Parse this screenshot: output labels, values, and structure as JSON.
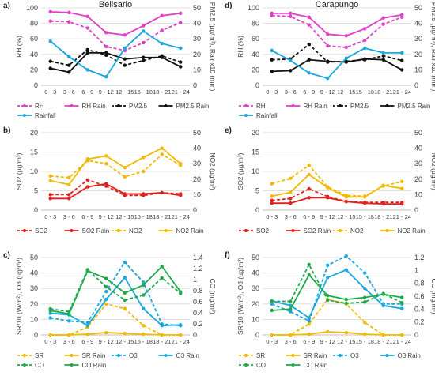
{
  "colors": {
    "pink": "#e040c8",
    "black": "#111111",
    "cyan": "#1aa7dc",
    "orange": "#f2b900",
    "red": "#e0201c",
    "green": "#1ea84a",
    "grid": "#d9d9d9",
    "axis": "#bfbfbf",
    "text": "#404040"
  },
  "chart_data": [
    {
      "id": "a",
      "type": "line",
      "panel_label": "a)",
      "title": "Belisario",
      "categories": [
        "0 - 3",
        "3 - 6",
        "6 - 9",
        "9 - 12",
        "12 - 15",
        "15 - 18",
        "18 - 21",
        "21 - 24"
      ],
      "ylabel": "RH (%)",
      "ylabel_right": "PM2.5 (µg/m³), Rainx10 (mm)",
      "ylim": [
        0,
        100
      ],
      "yticks": [
        0,
        20,
        40,
        60,
        80,
        100
      ],
      "ylim_right": [
        0,
        50
      ],
      "yticks_right": [
        0,
        10,
        20,
        30,
        40,
        50
      ],
      "grid": true,
      "legend_position": "bottom",
      "series": [
        {
          "name": "RH",
          "color": "pink",
          "dash": true,
          "axis": "left",
          "values": [
            83,
            82,
            74,
            50,
            45,
            55,
            71,
            81
          ]
        },
        {
          "name": "RH Rain",
          "color": "pink",
          "dash": false,
          "axis": "left",
          "values": [
            95,
            94,
            89,
            68,
            65,
            77,
            90,
            93
          ]
        },
        {
          "name": "PM2.5",
          "color": "black",
          "dash": true,
          "axis": "right",
          "values": [
            15.5,
            13,
            23,
            19.5,
            13,
            16,
            19,
            15
          ]
        },
        {
          "name": "PM2.5 Rain",
          "color": "black",
          "dash": false,
          "axis": "right",
          "values": [
            11,
            8.5,
            21,
            21,
            17,
            18,
            18,
            12
          ]
        },
        {
          "name": "Rainfall",
          "color": "cyan",
          "dash": false,
          "axis": "right",
          "values": [
            28.5,
            18.5,
            10,
            5.5,
            24,
            35,
            27,
            24
          ]
        }
      ]
    },
    {
      "id": "d",
      "type": "line",
      "panel_label": "d)",
      "title": "Carapungo",
      "categories": [
        "0 - 3",
        "3 - 6",
        "6 - 9",
        "9 - 12",
        "12 - 15",
        "15 - 18",
        "18 - 21",
        "21 - 24"
      ],
      "ylabel": "RH (%)",
      "ylabel_right": "PM2.5 (µg/m³), Rainx10 (mm)",
      "ylim": [
        0,
        100
      ],
      "yticks": [
        0,
        20,
        40,
        60,
        80,
        100
      ],
      "ylim_right": [
        0,
        50
      ],
      "yticks_right": [
        0,
        10,
        20,
        30,
        40,
        50
      ],
      "grid": true,
      "legend_position": "bottom",
      "series": [
        {
          "name": "RH",
          "color": "pink",
          "dash": true,
          "axis": "left",
          "values": [
            90,
            89,
            78,
            51,
            49,
            58,
            79,
            88
          ]
        },
        {
          "name": "RH Rain",
          "color": "pink",
          "dash": false,
          "axis": "left",
          "values": [
            93,
            93,
            88,
            66,
            64,
            73,
            87,
            91
          ]
        },
        {
          "name": "PM2.5",
          "color": "black",
          "dash": true,
          "axis": "right",
          "values": [
            16.5,
            17,
            26.5,
            15,
            15.5,
            16.5,
            19,
            16
          ]
        },
        {
          "name": "PM2.5 Rain",
          "color": "black",
          "dash": false,
          "axis": "right",
          "values": [
            9,
            9.5,
            16.5,
            15.5,
            15,
            17,
            16.5,
            10
          ]
        },
        {
          "name": "Rainfall",
          "color": "cyan",
          "dash": false,
          "axis": "right",
          "values": [
            22.5,
            16,
            8,
            4.5,
            17.5,
            24,
            21,
            21
          ]
        }
      ]
    },
    {
      "id": "b",
      "type": "line",
      "panel_label": "b)",
      "categories": [
        "0 - 3",
        "3 - 6",
        "6 - 9",
        "9 - 12",
        "12 - 15",
        "15 - 18",
        "18 - 21",
        "21 - 24"
      ],
      "ylabel": "SO2 (µg/m³)",
      "ylabel_right": "NO2 (µg/m³)",
      "ylim": [
        0,
        20
      ],
      "yticks": [
        0,
        5,
        10,
        15,
        20
      ],
      "ylim_right": [
        0,
        50
      ],
      "yticks_right": [
        0,
        10,
        20,
        30,
        40,
        50
      ],
      "grid": true,
      "legend_position": "bottom",
      "series": [
        {
          "name": "SO2",
          "color": "red",
          "dash": true,
          "axis": "left",
          "values": [
            4,
            4,
            7.8,
            6.2,
            3.8,
            3.8,
            4.5,
            4.2
          ]
        },
        {
          "name": "SO2 Rain",
          "color": "red",
          "dash": false,
          "axis": "left",
          "values": [
            3,
            3,
            6,
            6.8,
            4.2,
            4.2,
            4.5,
            3.8
          ]
        },
        {
          "name": "NO2",
          "color": "orange",
          "dash": true,
          "axis": "right",
          "values": [
            22,
            21,
            32,
            30,
            21.5,
            25,
            36,
            29
          ]
        },
        {
          "name": "NO2 Rain",
          "color": "orange",
          "dash": false,
          "axis": "right",
          "values": [
            19,
            16.5,
            33,
            35,
            27.5,
            34,
            40,
            30
          ]
        }
      ]
    },
    {
      "id": "e",
      "type": "line",
      "panel_label": "e)",
      "categories": [
        "0 - 3",
        "3 - 6",
        "6 - 9",
        "9 - 12",
        "12 - 15",
        "15 - 18",
        "18 - 21",
        "21 - 24"
      ],
      "ylabel": "SO2 (µg/m³)",
      "ylabel_right": "NO2 (µg/m³)",
      "ylim": [
        0,
        20
      ],
      "yticks": [
        0,
        5,
        10,
        15,
        20
      ],
      "ylim_right": [
        0,
        50
      ],
      "yticks_right": [
        0,
        10,
        20,
        30,
        40,
        50
      ],
      "grid": true,
      "legend_position": "bottom",
      "series": [
        {
          "name": "SO2",
          "color": "red",
          "dash": true,
          "axis": "left",
          "values": [
            2.5,
            3,
            5.5,
            3.5,
            2.2,
            2,
            2,
            2
          ]
        },
        {
          "name": "SO2 Rain",
          "color": "red",
          "dash": false,
          "axis": "left",
          "values": [
            1.8,
            1.8,
            3.2,
            3.2,
            2.2,
            1.8,
            1.6,
            1.6
          ]
        },
        {
          "name": "NO2",
          "color": "orange",
          "dash": true,
          "axis": "right",
          "values": [
            17,
            20.5,
            29,
            15,
            9.5,
            9,
            15.5,
            18.5
          ]
        },
        {
          "name": "NO2 Rain",
          "color": "orange",
          "dash": false,
          "axis": "right",
          "values": [
            9,
            11.5,
            23,
            14.5,
            8.5,
            8.5,
            16,
            14
          ]
        }
      ]
    },
    {
      "id": "c",
      "type": "line",
      "panel_label": "c)",
      "categories": [
        "0 - 3",
        "3 - 6",
        "6 - 9",
        "9 - 12",
        "12 - 15",
        "15 - 18",
        "18 - 21",
        "21 - 24"
      ],
      "ylabel": "SR/10 (W/m²), O3 (µg/m³)",
      "ylabel_right": "CO (mg/m³)",
      "ylim": [
        0,
        50
      ],
      "yticks": [
        0,
        10,
        20,
        30,
        40,
        50
      ],
      "ylim_right": [
        0,
        1.4
      ],
      "yticks_right": [
        0,
        0.2,
        0.4,
        0.6,
        0.8,
        1.0,
        1.2,
        1.4
      ],
      "grid": true,
      "legend_position": "bottom",
      "series": [
        {
          "name": "SR",
          "color": "orange",
          "dash": true,
          "axis": "left",
          "values": [
            0,
            0,
            5,
            20,
            17,
            6,
            0,
            0
          ]
        },
        {
          "name": "SR Rain",
          "color": "orange",
          "dash": false,
          "axis": "left",
          "values": [
            0,
            0,
            0.5,
            1.5,
            1,
            0.5,
            0,
            0
          ]
        },
        {
          "name": "O3",
          "color": "cyan",
          "dash": true,
          "axis": "left",
          "values": [
            11,
            9,
            8,
            28,
            47,
            34,
            7,
            6
          ]
        },
        {
          "name": "O3 Rain",
          "color": "cyan",
          "dash": false,
          "axis": "left",
          "values": [
            14,
            13,
            6,
            23,
            37,
            17,
            6,
            6.5
          ]
        },
        {
          "name": "CO",
          "color": "green",
          "dash": true,
          "axis": "right",
          "values": [
            0.47,
            0.42,
            1.18,
            0.87,
            0.63,
            0.72,
            1.03,
            0.75
          ]
        },
        {
          "name": "CO Rain",
          "color": "green",
          "dash": false,
          "axis": "right",
          "values": [
            0.44,
            0.38,
            1.16,
            1.02,
            0.76,
            0.9,
            1.24,
            0.78
          ]
        }
      ]
    },
    {
      "id": "f",
      "type": "line",
      "panel_label": "f)",
      "categories": [
        "0 - 3",
        "3 - 6",
        "6 - 9",
        "9 - 12",
        "12 - 15",
        "15 - 18",
        "18 - 21",
        "21 - 24"
      ],
      "ylabel": "SR/10 (W/m²), O3 (µg/m³)",
      "ylabel_right": "CO (mg/m³)",
      "ylim": [
        0,
        50
      ],
      "yticks": [
        0,
        10,
        20,
        30,
        40,
        50
      ],
      "ylim_right": [
        0,
        1.2
      ],
      "yticks_right": [
        0,
        0.2,
        0.4,
        0.6,
        0.8,
        1.0,
        1.2
      ],
      "grid": true,
      "legend_position": "bottom",
      "series": [
        {
          "name": "SR",
          "color": "orange",
          "dash": true,
          "axis": "left",
          "values": [
            0,
            0,
            7,
            23,
            20,
            8,
            0,
            0
          ]
        },
        {
          "name": "SR Rain",
          "color": "orange",
          "dash": false,
          "axis": "left",
          "values": [
            0,
            0,
            0.5,
            2,
            1.5,
            0.5,
            0,
            0
          ]
        },
        {
          "name": "O3",
          "color": "cyan",
          "dash": true,
          "axis": "left",
          "values": [
            20,
            15,
            9,
            45,
            51,
            40,
            20,
            20
          ]
        },
        {
          "name": "O3 Rain",
          "color": "cyan",
          "dash": false,
          "axis": "left",
          "values": [
            22,
            19,
            11,
            37,
            42,
            30,
            19,
            17
          ]
        },
        {
          "name": "CO",
          "color": "green",
          "dash": true,
          "axis": "right",
          "values": [
            0.52,
            0.52,
            1.09,
            0.54,
            0.49,
            0.51,
            0.64,
            0.5
          ]
        },
        {
          "name": "CO Rain",
          "color": "green",
          "dash": false,
          "axis": "right",
          "values": [
            0.38,
            0.4,
            0.93,
            0.61,
            0.55,
            0.58,
            0.63,
            0.58
          ]
        }
      ]
    }
  ]
}
